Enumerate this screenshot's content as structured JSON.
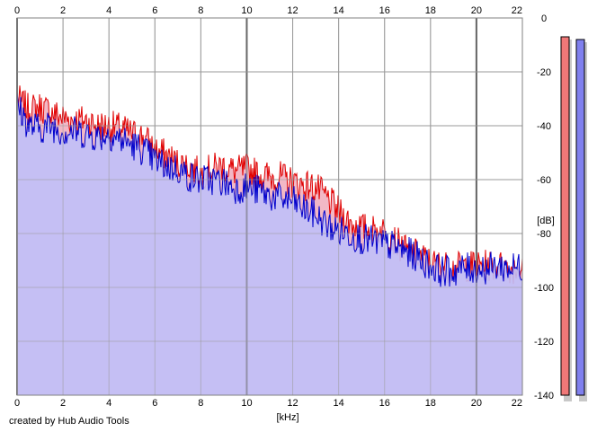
{
  "footer": "created by Hub Audio Tools",
  "chart_data": {
    "type": "area",
    "title": "",
    "xlabel": "[kHz]",
    "ylabel": "[dB]",
    "xlim": [
      0,
      22
    ],
    "ylim": [
      -140,
      0
    ],
    "x_ticks": [
      "0",
      "2",
      "4",
      "6",
      "8",
      "10",
      "12",
      "14",
      "16",
      "18",
      "20",
      "22"
    ],
    "y_ticks": [
      "0",
      "-20",
      "-40",
      "-60",
      "-80",
      "-100",
      "-120",
      "-140"
    ],
    "grid": true,
    "series": [
      {
        "name": "",
        "color": "#e00000",
        "fill": "#f2b8c6",
        "x": [
          0,
          0.5,
          1,
          1.5,
          2,
          2.5,
          3,
          3.5,
          4,
          4.5,
          5,
          5.5,
          6,
          6.5,
          7,
          7.5,
          8,
          8.5,
          9,
          9.5,
          10,
          10.5,
          11,
          11.5,
          12,
          12.5,
          13,
          13.5,
          14,
          14.5,
          15,
          15.5,
          16,
          16.5,
          17,
          17.5,
          18,
          18.5,
          19,
          19.5,
          20,
          20.5,
          21,
          21.5,
          22
        ],
        "values": [
          -30,
          -34,
          -33,
          -35,
          -37,
          -38,
          -38,
          -40,
          -40,
          -41,
          -43,
          -44,
          -49,
          -51,
          -54,
          -55,
          -58,
          -56,
          -55,
          -57,
          -56,
          -58,
          -59,
          -59,
          -61,
          -62,
          -63,
          -67,
          -72,
          -76,
          -78,
          -79,
          -79,
          -83,
          -87,
          -88,
          -91,
          -92,
          -93,
          -92,
          -92,
          -92,
          -92,
          -93,
          -92
        ]
      },
      {
        "name": "",
        "color": "#0000cc",
        "fill": "#c0c0f8",
        "x": [
          0,
          0.5,
          1,
          1.5,
          2,
          2.5,
          3,
          3.5,
          4,
          4.5,
          5,
          5.5,
          6,
          6.5,
          7,
          7.5,
          8,
          8.5,
          9,
          9.5,
          10,
          10.5,
          11,
          11.5,
          12,
          12.5,
          13,
          13.5,
          14,
          14.5,
          15,
          15.5,
          16,
          16.5,
          17,
          17.5,
          18,
          18.5,
          19,
          19.5,
          20,
          20.5,
          21,
          21.5,
          22
        ],
        "values": [
          -32,
          -40,
          -41,
          -40,
          -42,
          -42,
          -43,
          -44,
          -43,
          -45,
          -47,
          -49,
          -53,
          -55,
          -56,
          -59,
          -60,
          -60,
          -61,
          -63,
          -63,
          -64,
          -66,
          -67,
          -68,
          -71,
          -73,
          -77,
          -79,
          -80,
          -82,
          -83,
          -84,
          -85,
          -87,
          -89,
          -92,
          -94,
          -94,
          -93,
          -93,
          -93,
          -92,
          -93,
          -92
        ]
      }
    ],
    "meters": [
      {
        "channel": "left",
        "color": "#f07878",
        "level_db": -7
      },
      {
        "channel": "right",
        "color": "#8080ee",
        "level_db": -8
      }
    ]
  }
}
